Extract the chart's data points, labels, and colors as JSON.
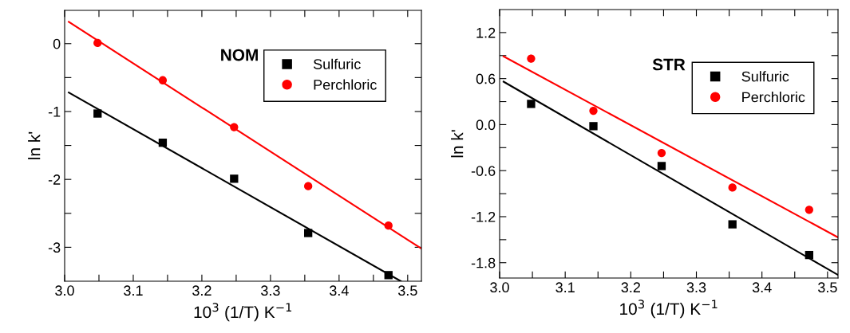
{
  "chart_data": [
    {
      "type": "scatter",
      "xlabel": "10$^{3}$ (1/T) K$^{−1}$",
      "ylabel": "ln k'",
      "annotations": [
        "NOM"
      ],
      "legend": "top right",
      "grid": false,
      "xlim": [
        3.0,
        3.52
      ],
      "ylim": [
        -3.5,
        0.49
      ],
      "xticks": [
        {
          "value": 3.0,
          "label": "3.0"
        },
        {
          "value": 3.05,
          "label": null
        },
        3.1,
        {
          "value": 3.15,
          "label": null
        },
        3.2,
        {
          "value": 3.25,
          "label": null
        },
        3.3,
        {
          "value": 3.35,
          "label": null
        },
        3.4,
        {
          "value": 3.45,
          "label": null
        },
        3.5
      ],
      "yticks": [
        -3,
        {
          "value": -2.5,
          "label": null
        },
        -2,
        {
          "value": -1.5,
          "label": null
        },
        -1,
        {
          "value": -0.5,
          "label": null
        },
        0
      ],
      "series": [
        {
          "name": "Sulfuric",
          "marker": "square",
          "color": "#000000",
          "x": [
            3.048,
            3.143,
            3.247,
            3.355,
            3.472
          ],
          "values": [
            -1.03,
            -1.46,
            -1.99,
            -2.79,
            -3.41
          ]
        },
        {
          "name": "Perchloric",
          "marker": "circle",
          "color": "#ff0000",
          "x": [
            3.048,
            3.143,
            3.247,
            3.355,
            3.472
          ],
          "values": [
            0.01,
            -0.54,
            -1.23,
            -2.1,
            -2.68
          ]
        },
        {
          "type": "line",
          "color": "#000000",
          "x": [
            3.006,
            3.49
          ],
          "values": [
            -0.72,
            -3.5
          ]
        },
        {
          "type": "line",
          "color": "#ff0000",
          "x": [
            3.006,
            3.52
          ],
          "values": [
            0.32,
            -3.02
          ]
        }
      ]
    },
    {
      "type": "scatter",
      "xlabel": "10$^{3}$ (1/T) K$^{−1}$",
      "ylabel": "ln k'",
      "annotations": [
        "STR"
      ],
      "legend": "top right",
      "grid": false,
      "xlim": [
        3.0,
        3.516
      ],
      "ylim": [
        -2.0,
        1.5
      ],
      "xticks": [
        {
          "value": 3.0,
          "label": "3.0"
        },
        {
          "value": 3.05,
          "label": null
        },
        3.1,
        {
          "value": 3.15,
          "label": null
        },
        3.2,
        {
          "value": 3.25,
          "label": null
        },
        3.3,
        {
          "value": 3.35,
          "label": null
        },
        3.4,
        {
          "value": 3.45,
          "label": null
        },
        3.5
      ],
      "yticks": [
        {
          "value": -1.8,
          "label": "-1.8"
        },
        {
          "value": -1.5,
          "label": null
        },
        {
          "value": -1.2,
          "label": "-1.2"
        },
        {
          "value": -0.9,
          "label": null
        },
        {
          "value": -0.6,
          "label": "-0.6"
        },
        {
          "value": -0.3,
          "label": null
        },
        {
          "value": 0.0,
          "label": "0.0"
        },
        {
          "value": 0.3,
          "label": null
        },
        0.6,
        {
          "value": 0.9,
          "label": null
        },
        1.2
      ],
      "series": [
        {
          "name": "Sulfuric",
          "marker": "square",
          "color": "#000000",
          "x": [
            3.048,
            3.143,
            3.247,
            3.355,
            3.472
          ],
          "values": [
            0.27,
            -0.02,
            -0.54,
            -1.3,
            -1.7
          ]
        },
        {
          "name": "Perchloric",
          "marker": "circle",
          "color": "#ff0000",
          "x": [
            3.048,
            3.143,
            3.247,
            3.355,
            3.472
          ],
          "values": [
            0.86,
            0.18,
            -0.37,
            -0.82,
            -1.11
          ]
        },
        {
          "type": "line",
          "color": "#000000",
          "x": [
            3.006,
            3.516
          ],
          "values": [
            0.56,
            -1.96
          ]
        },
        {
          "type": "line",
          "color": "#ff0000",
          "x": [
            3.006,
            3.516
          ],
          "values": [
            0.89,
            -1.47
          ]
        }
      ]
    }
  ]
}
